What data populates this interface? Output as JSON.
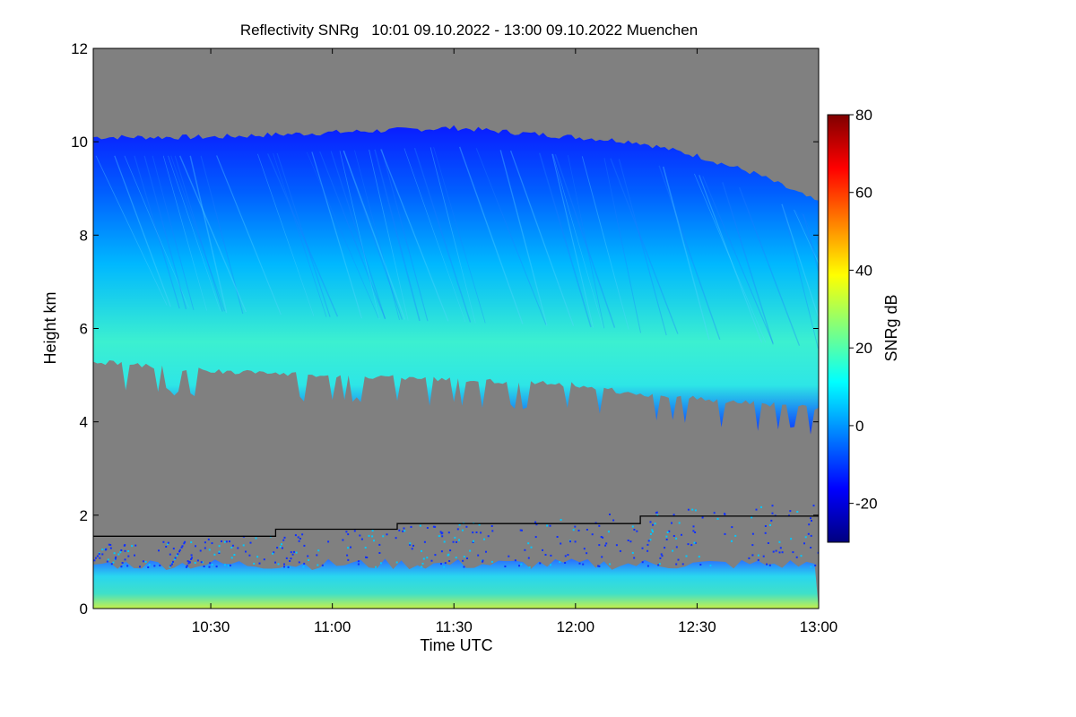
{
  "chart_data": {
    "type": "heatmap",
    "title": "Reflectivity SNRg   10:01 09.10.2022 - 13:00 09.10.2022 Muenchen",
    "xlabel": "Time UTC",
    "ylabel": "Height km",
    "xlim": [
      "10:01",
      "13:00"
    ],
    "ylim": [
      0,
      12
    ],
    "x_ticks": [
      "10:30",
      "11:00",
      "11:30",
      "12:00",
      "12:30",
      "13:00"
    ],
    "y_ticks": [
      0,
      2,
      4,
      6,
      8,
      10,
      12
    ],
    "background_color": "#808080",
    "colorbar": {
      "label": "SNRg dB",
      "range": [
        -30,
        80
      ],
      "ticks": [
        -20,
        0,
        20,
        40,
        60,
        80
      ],
      "colors": [
        "#00007f",
        "#0000ff",
        "#007fff",
        "#00ffff",
        "#7fff7f",
        "#ffff00",
        "#ff7f00",
        "#ff0000",
        "#7f0000"
      ]
    },
    "cloud_layer": {
      "description_values": "upper cloud top and base heights (km) over time",
      "time": [
        "10:01",
        "10:30",
        "11:00",
        "11:30",
        "12:00",
        "12:15",
        "12:30",
        "12:45",
        "13:00"
      ],
      "top_km": [
        10.1,
        10.1,
        10.2,
        10.3,
        10.1,
        10.0,
        9.7,
        9.3,
        8.7
      ],
      "base_km": [
        5.3,
        5.1,
        5.0,
        4.9,
        4.8,
        4.6,
        4.5,
        4.4,
        4.3
      ],
      "core_snr_db": 15
    },
    "boundary_layer_line": {
      "time": [
        "10:01",
        "10:46",
        "10:46",
        "11:16",
        "11:16",
        "12:16",
        "12:16",
        "13:00"
      ],
      "height_km": [
        1.55,
        1.55,
        1.7,
        1.7,
        1.82,
        1.82,
        1.98,
        1.98
      ]
    },
    "near_surface_echo": {
      "height_range_km": [
        0,
        1.0
      ],
      "snr_db_range": [
        0,
        25
      ]
    }
  }
}
